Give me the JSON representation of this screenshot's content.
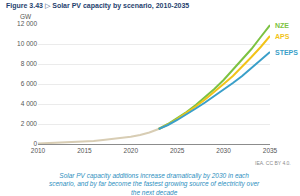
{
  "chart_data": {
    "type": "line",
    "title": "Figure 3.43 ▷ Solar PV capacity by scenario, 2010-2035",
    "ylabel": "GW",
    "caption": "Solar PV capacity additions increase dramatically by 2030 in each scenario, and by far become the fastest growing source of electricity over the next decade",
    "source": "IEA. CC BY 4.0.",
    "x": [
      2010,
      2011,
      2012,
      2013,
      2014,
      2015,
      2016,
      2017,
      2018,
      2019,
      2020,
      2021,
      2022,
      2023,
      2024,
      2025,
      2026,
      2027,
      2028,
      2029,
      2030,
      2031,
      2032,
      2033,
      2034,
      2035
    ],
    "series": [
      {
        "color": "#d8cdb4",
        "values": [
          40,
          72,
          100,
          140,
          180,
          230,
          300,
          400,
          500,
          600,
          720,
          900,
          1150,
          1500,
          null,
          null,
          null,
          null,
          null,
          null,
          null,
          null,
          null,
          null,
          null,
          null
        ]
      },
      {
        "name": "NZE",
        "color": "#7cc242",
        "values": [
          null,
          null,
          null,
          null,
          null,
          null,
          null,
          null,
          null,
          null,
          null,
          null,
          null,
          1500,
          2000,
          2600,
          3200,
          3900,
          4700,
          5500,
          6400,
          7400,
          8400,
          9500,
          10700,
          11900
        ]
      },
      {
        "name": "APS",
        "color": "#f2c318",
        "values": [
          null,
          null,
          null,
          null,
          null,
          null,
          null,
          null,
          null,
          null,
          null,
          null,
          null,
          1500,
          1950,
          2500,
          3100,
          3750,
          4450,
          5200,
          6000,
          6800,
          7700,
          8700,
          9700,
          10800
        ]
      },
      {
        "name": "STEPS",
        "color": "#3a9fc9",
        "values": [
          null,
          null,
          null,
          null,
          null,
          null,
          null,
          null,
          null,
          null,
          null,
          null,
          null,
          1500,
          1900,
          2400,
          2950,
          3550,
          4150,
          4800,
          5400,
          6100,
          6800,
          7600,
          8400,
          9200
        ]
      }
    ],
    "xlim": [
      2010,
      2035
    ],
    "xticks": [
      2010,
      2015,
      2020,
      2025,
      2030,
      2035
    ],
    "ylim": [
      0,
      12000
    ],
    "yticks": [
      0,
      {
        "value": 2000,
        "label": "2 000"
      },
      {
        "value": 4000,
        "label": "4 000"
      },
      {
        "value": 6000,
        "label": "6 000"
      },
      {
        "value": 8000,
        "label": "8 000"
      },
      {
        "value": 10000,
        "label": "10 000"
      },
      {
        "value": 12000,
        "label": "12 000"
      }
    ],
    "grid": true
  }
}
